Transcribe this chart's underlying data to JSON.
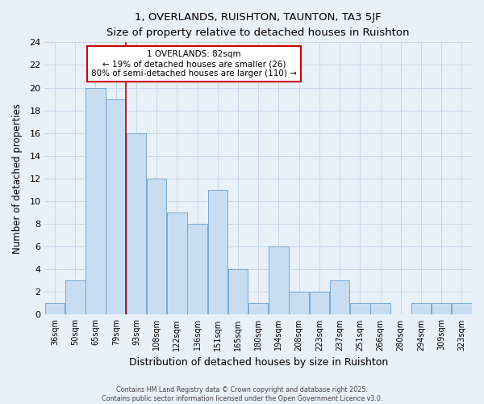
{
  "title1": "1, OVERLANDS, RUISHTON, TAUNTON, TA3 5JF",
  "title2": "Size of property relative to detached houses in Ruishton",
  "xlabel": "Distribution of detached houses by size in Ruishton",
  "ylabel": "Number of detached properties",
  "bar_labels": [
    "36sqm",
    "50sqm",
    "65sqm",
    "79sqm",
    "93sqm",
    "108sqm",
    "122sqm",
    "136sqm",
    "151sqm",
    "165sqm",
    "180sqm",
    "194sqm",
    "208sqm",
    "223sqm",
    "237sqm",
    "251sqm",
    "266sqm",
    "280sqm",
    "294sqm",
    "309sqm",
    "323sqm"
  ],
  "bar_values": [
    1,
    3,
    20,
    19,
    16,
    12,
    9,
    8,
    11,
    4,
    1,
    6,
    2,
    2,
    3,
    1,
    1,
    0,
    1,
    1,
    1
  ],
  "bar_color": "#c9ddf2",
  "bar_edge_color": "#6a9fcb",
  "property_line_x": 3.5,
  "annotation_title": "1 OVERLANDS: 82sqm",
  "annotation_line1": "← 19% of detached houses are smaller (26)",
  "annotation_line2": "80% of semi-detached houses are larger (110) →",
  "annotation_box_color": "#ffffff",
  "annotation_box_edge": "#cc0000",
  "property_line_color": "#bb0000",
  "ylim": [
    0,
    24
  ],
  "yticks": [
    0,
    2,
    4,
    6,
    8,
    10,
    12,
    14,
    16,
    18,
    20,
    22,
    24
  ],
  "grid_color": "#c8d8ea",
  "background_color": "#e8f0f8",
  "footer1": "Contains HM Land Registry data © Crown copyright and database right 2025.",
  "footer2": "Contains public sector information licensed under the Open Government Licence v3.0."
}
